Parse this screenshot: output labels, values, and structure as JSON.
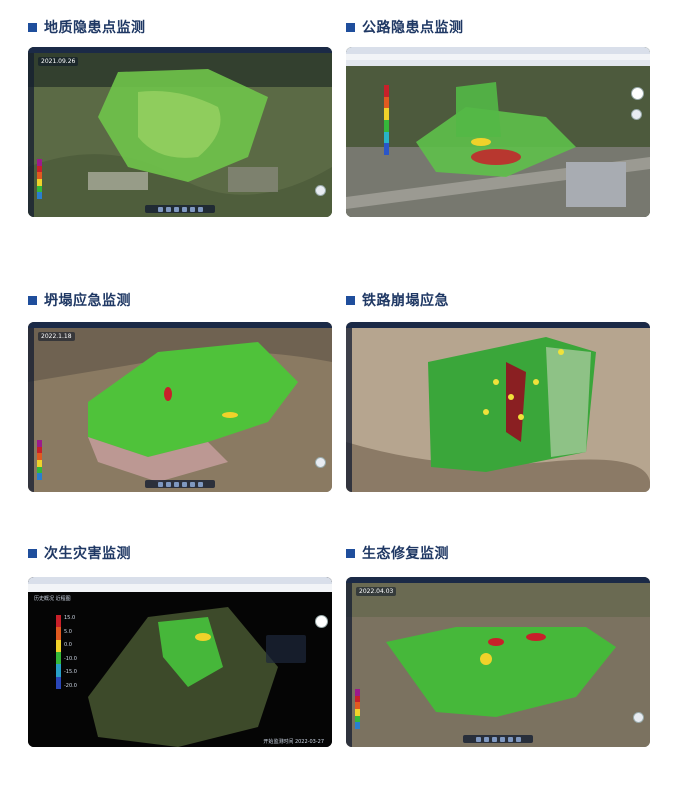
{
  "panels": [
    {
      "id": "geo",
      "title": "地质隐患点监测",
      "date_label": "2021.09.26"
    },
    {
      "id": "road",
      "title": "公路隐患点监测"
    },
    {
      "id": "collapse",
      "title": "坍塌应急监测",
      "date_label": "2022.1.18"
    },
    {
      "id": "rail",
      "title": "铁路崩塌应急"
    },
    {
      "id": "secondary",
      "title": "次生灾害监测",
      "toolbar_label": "历史概况",
      "toolbar_value": "近程图",
      "legend_values": [
        "15.0",
        "5.0",
        "0.0",
        "-10.0",
        "-15.0",
        "-20.0"
      ],
      "footer_label": "开始监测时间",
      "footer_date": "2022-03-27"
    },
    {
      "id": "eco",
      "title": "生态修复监测",
      "date_label": "2022.04.03"
    }
  ],
  "colors": {
    "heading_square": "#1f4e9c",
    "heading_text": "#1f3864",
    "deform_green": "#35b83a",
    "deform_red": "#c8202a",
    "deform_yellow": "#f0d22a"
  }
}
